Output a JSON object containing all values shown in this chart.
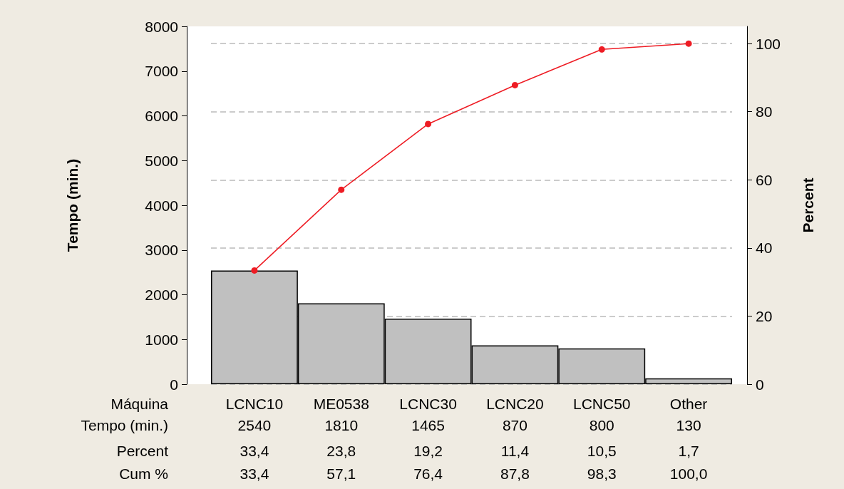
{
  "chart_data": {
    "type": "bar",
    "xlabel": "Máquina",
    "ylabel": "Tempo (min.)",
    "y2label": "Percent",
    "categories": [
      "LCNC10",
      "ME0538",
      "LCNC30",
      "LCNC20",
      "LCNC50",
      "Other"
    ],
    "series": [
      {
        "color": "#c0c0c0",
        "values": [
          2540,
          1810,
          1465,
          870,
          800,
          130
        ],
        "value_labels": [
          "2540",
          "1810",
          "1465",
          "870",
          "800",
          "130"
        ]
      },
      {
        "type": "line",
        "axis": "y2",
        "color": "#ee1c24",
        "values": [
          33.4,
          57.1,
          76.4,
          87.8,
          98.3,
          100.0
        ],
        "value_labels": [
          "33,4",
          "57,1",
          "76,4",
          "87,8",
          "98,3",
          "100,0"
        ]
      }
    ],
    "annotations": [
      "Tempo (min.)",
      "Percent",
      "33,4",
      "23,8",
      "19,2",
      "11,4",
      "10,5",
      "1,7",
      "Cum %"
    ],
    "ylim": [
      0,
      8000
    ],
    "yticks": [
      0,
      1000,
      2000,
      3000,
      4000,
      5000,
      6000,
      7000,
      8000
    ],
    "y2lim": [
      0,
      105.06
    ],
    "y2ticks": [
      0,
      20,
      40,
      60,
      80,
      100
    ],
    "grid": "y2",
    "marker": "circle",
    "line_style": "solid"
  }
}
